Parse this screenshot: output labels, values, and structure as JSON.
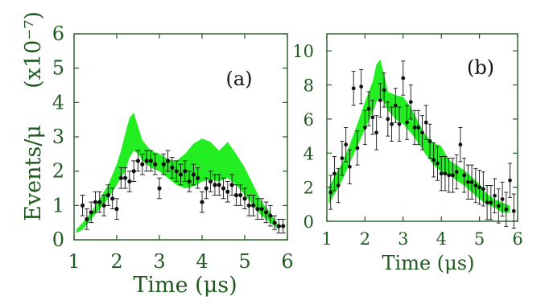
{
  "colors": {
    "axis": "#1f5a1f",
    "band": "#22ee22",
    "points": "#111111"
  },
  "chart_data": [
    {
      "type": "scatter",
      "panel_label": "(a)",
      "xlabel": "Time (μs)",
      "ylabel": "Events/μ",
      "yscale_label": "(x10⁻⁷)",
      "xlim": [
        1,
        6
      ],
      "ylim": [
        0,
        6
      ],
      "xticks": [
        "1",
        "2",
        "3",
        "4",
        "5",
        "6"
      ],
      "yticks": [
        "0",
        "1",
        "2",
        "3",
        "4",
        "5",
        "6"
      ],
      "band": {
        "x": [
          1.05,
          1.2,
          1.4,
          1.6,
          1.8,
          2.0,
          2.1,
          2.2,
          2.3,
          2.4,
          2.5,
          2.6,
          2.8,
          3.0,
          3.2,
          3.4,
          3.6,
          3.8,
          4.0,
          4.2,
          4.4,
          4.6,
          4.8,
          5.0,
          5.2,
          5.4,
          5.6,
          5.8
        ],
        "lower": [
          0.2,
          0.3,
          0.6,
          0.9,
          1.2,
          1.6,
          1.8,
          2.0,
          2.4,
          2.6,
          2.5,
          2.3,
          2.1,
          2.0,
          1.8,
          1.6,
          1.5,
          1.55,
          1.7,
          1.75,
          1.7,
          1.8,
          1.6,
          1.3,
          1.0,
          0.7,
          0.5,
          0.3
        ],
        "upper": [
          0.3,
          0.5,
          0.8,
          1.2,
          1.6,
          2.2,
          2.6,
          3.1,
          3.55,
          3.7,
          3.3,
          2.9,
          2.6,
          2.5,
          2.35,
          2.3,
          2.5,
          2.8,
          2.95,
          2.85,
          2.6,
          2.85,
          2.5,
          2.1,
          1.6,
          1.1,
          0.8,
          0.4
        ]
      },
      "points": [
        {
          "x": 1.2,
          "y": 1.0,
          "err": 0.3
        },
        {
          "x": 1.3,
          "y": 0.6,
          "err": 0.3
        },
        {
          "x": 1.4,
          "y": 0.8,
          "err": 0.3
        },
        {
          "x": 1.5,
          "y": 1.1,
          "err": 0.3
        },
        {
          "x": 1.6,
          "y": 1.1,
          "err": 0.3
        },
        {
          "x": 1.7,
          "y": 1.0,
          "err": 0.3
        },
        {
          "x": 1.8,
          "y": 1.3,
          "err": 0.3
        },
        {
          "x": 1.9,
          "y": 1.2,
          "err": 0.3
        },
        {
          "x": 2.0,
          "y": 0.9,
          "err": 0.3
        },
        {
          "x": 2.1,
          "y": 1.8,
          "err": 0.3
        },
        {
          "x": 2.2,
          "y": 1.8,
          "err": 0.3
        },
        {
          "x": 2.3,
          "y": 1.7,
          "err": 0.3
        },
        {
          "x": 2.4,
          "y": 2.0,
          "err": 0.3
        },
        {
          "x": 2.5,
          "y": 2.3,
          "err": 0.3
        },
        {
          "x": 2.6,
          "y": 2.2,
          "err": 0.3
        },
        {
          "x": 2.7,
          "y": 2.3,
          "err": 0.3
        },
        {
          "x": 2.8,
          "y": 2.3,
          "err": 0.3
        },
        {
          "x": 2.9,
          "y": 2.2,
          "err": 0.3
        },
        {
          "x": 3.0,
          "y": 1.5,
          "err": 0.3
        },
        {
          "x": 3.1,
          "y": 2.2,
          "err": 0.3
        },
        {
          "x": 3.2,
          "y": 2.3,
          "err": 0.3
        },
        {
          "x": 3.3,
          "y": 2.1,
          "err": 0.3
        },
        {
          "x": 3.4,
          "y": 2.0,
          "err": 0.3
        },
        {
          "x": 3.5,
          "y": 1.9,
          "err": 0.3
        },
        {
          "x": 3.6,
          "y": 2.0,
          "err": 0.3
        },
        {
          "x": 3.7,
          "y": 1.7,
          "err": 0.3
        },
        {
          "x": 3.8,
          "y": 1.9,
          "err": 0.3
        },
        {
          "x": 3.9,
          "y": 1.8,
          "err": 0.3
        },
        {
          "x": 4.0,
          "y": 1.1,
          "err": 0.3
        },
        {
          "x": 4.1,
          "y": 1.5,
          "err": 0.3
        },
        {
          "x": 4.2,
          "y": 1.7,
          "err": 0.3
        },
        {
          "x": 4.3,
          "y": 1.6,
          "err": 0.3
        },
        {
          "x": 4.4,
          "y": 1.6,
          "err": 0.3
        },
        {
          "x": 4.5,
          "y": 1.5,
          "err": 0.3
        },
        {
          "x": 4.6,
          "y": 1.4,
          "err": 0.3
        },
        {
          "x": 4.7,
          "y": 1.6,
          "err": 0.3
        },
        {
          "x": 4.8,
          "y": 1.3,
          "err": 0.3
        },
        {
          "x": 4.9,
          "y": 1.3,
          "err": 0.3
        },
        {
          "x": 5.0,
          "y": 1.2,
          "err": 0.3
        },
        {
          "x": 5.1,
          "y": 1.0,
          "err": 0.3
        },
        {
          "x": 5.2,
          "y": 1.0,
          "err": 0.3
        },
        {
          "x": 5.3,
          "y": 0.9,
          "err": 0.3
        },
        {
          "x": 5.4,
          "y": 0.9,
          "err": 0.3
        },
        {
          "x": 5.5,
          "y": 0.8,
          "err": 0.3
        },
        {
          "x": 5.6,
          "y": 0.7,
          "err": 0.3
        },
        {
          "x": 5.7,
          "y": 0.5,
          "err": 0.2
        },
        {
          "x": 5.8,
          "y": 0.4,
          "err": 0.2
        },
        {
          "x": 5.9,
          "y": 0.4,
          "err": 0.2
        }
      ]
    },
    {
      "type": "scatter",
      "panel_label": "(b)",
      "xlabel": "Time (μs)",
      "xlim": [
        1,
        6
      ],
      "ylim": [
        0,
        11
      ],
      "xticks": [
        "1",
        "2",
        "3",
        "4",
        "5",
        "6"
      ],
      "yticks": [
        "0",
        "2",
        "4",
        "6",
        "8",
        "10"
      ],
      "band": {
        "x": [
          1.05,
          1.2,
          1.4,
          1.6,
          1.8,
          2.0,
          2.2,
          2.3,
          2.4,
          2.5,
          2.6,
          2.8,
          3.0,
          3.2,
          3.4,
          3.6,
          3.8,
          4.0,
          4.2,
          4.4,
          4.6,
          4.8,
          5.0,
          5.2,
          5.4,
          5.6,
          5.8
        ],
        "lower": [
          1.0,
          1.6,
          2.4,
          3.4,
          4.4,
          5.4,
          6.4,
          7.0,
          7.3,
          7.0,
          6.5,
          6.0,
          5.7,
          5.2,
          4.6,
          3.9,
          3.3,
          2.9,
          2.7,
          2.4,
          2.1,
          1.7,
          1.3,
          1.0,
          0.8,
          0.5,
          0.5
        ],
        "upper": [
          2.0,
          2.6,
          3.4,
          4.5,
          5.7,
          7.0,
          8.2,
          9.2,
          9.5,
          8.6,
          7.6,
          7.4,
          7.3,
          6.7,
          5.8,
          5.0,
          4.6,
          4.4,
          3.6,
          3.3,
          3.0,
          2.6,
          2.2,
          1.6,
          1.3,
          1.1,
          0.9
        ]
      },
      "points": [
        {
          "x": 1.1,
          "y": 1.7,
          "err": 1.0
        },
        {
          "x": 1.2,
          "y": 2.8,
          "err": 1.0
        },
        {
          "x": 1.3,
          "y": 2.1,
          "err": 1.0
        },
        {
          "x": 1.4,
          "y": 3.7,
          "err": 1.0
        },
        {
          "x": 1.5,
          "y": 4.5,
          "err": 1.0
        },
        {
          "x": 1.6,
          "y": 3.2,
          "err": 1.0
        },
        {
          "x": 1.7,
          "y": 7.8,
          "err": 1.0
        },
        {
          "x": 1.8,
          "y": 4.3,
          "err": 1.0
        },
        {
          "x": 1.9,
          "y": 7.9,
          "err": 1.0
        },
        {
          "x": 2.0,
          "y": 5.5,
          "err": 1.0
        },
        {
          "x": 2.1,
          "y": 6.6,
          "err": 1.0
        },
        {
          "x": 2.2,
          "y": 6.1,
          "err": 1.0
        },
        {
          "x": 2.3,
          "y": 5.2,
          "err": 1.0
        },
        {
          "x": 2.4,
          "y": 7.1,
          "err": 1.0
        },
        {
          "x": 2.5,
          "y": 7.7,
          "err": 1.0
        },
        {
          "x": 2.6,
          "y": 6.0,
          "err": 1.0
        },
        {
          "x": 2.7,
          "y": 5.7,
          "err": 1.0
        },
        {
          "x": 2.8,
          "y": 6.8,
          "err": 1.0
        },
        {
          "x": 2.9,
          "y": 5.7,
          "err": 1.0
        },
        {
          "x": 3.0,
          "y": 8.4,
          "err": 1.0
        },
        {
          "x": 3.1,
          "y": 5.8,
          "err": 1.0
        },
        {
          "x": 3.2,
          "y": 7.0,
          "err": 1.0
        },
        {
          "x": 3.3,
          "y": 5.5,
          "err": 1.0
        },
        {
          "x": 3.4,
          "y": 5.5,
          "err": 1.0
        },
        {
          "x": 3.5,
          "y": 5.2,
          "err": 1.0
        },
        {
          "x": 3.6,
          "y": 5.8,
          "err": 1.0
        },
        {
          "x": 3.7,
          "y": 4.7,
          "err": 1.0
        },
        {
          "x": 3.8,
          "y": 3.6,
          "err": 1.0
        },
        {
          "x": 3.9,
          "y": 3.4,
          "err": 1.0
        },
        {
          "x": 4.0,
          "y": 2.8,
          "err": 1.0
        },
        {
          "x": 4.1,
          "y": 2.8,
          "err": 1.0
        },
        {
          "x": 4.2,
          "y": 2.7,
          "err": 1.0
        },
        {
          "x": 4.3,
          "y": 2.7,
          "err": 1.0
        },
        {
          "x": 4.4,
          "y": 2.9,
          "err": 1.0
        },
        {
          "x": 4.5,
          "y": 4.5,
          "err": 1.0
        },
        {
          "x": 4.6,
          "y": 2.7,
          "err": 1.0
        },
        {
          "x": 4.7,
          "y": 2.3,
          "err": 1.0
        },
        {
          "x": 4.8,
          "y": 2.3,
          "err": 1.0
        },
        {
          "x": 4.9,
          "y": 2.1,
          "err": 1.0
        },
        {
          "x": 5.0,
          "y": 2.0,
          "err": 1.0
        },
        {
          "x": 5.1,
          "y": 1.9,
          "err": 1.0
        },
        {
          "x": 5.2,
          "y": 1.1,
          "err": 1.0
        },
        {
          "x": 5.3,
          "y": 1.1,
          "err": 1.0
        },
        {
          "x": 5.4,
          "y": 1.5,
          "err": 1.0
        },
        {
          "x": 5.5,
          "y": 0.9,
          "err": 1.0
        },
        {
          "x": 5.6,
          "y": 1.3,
          "err": 1.0
        },
        {
          "x": 5.7,
          "y": 0.7,
          "err": 1.0
        },
        {
          "x": 5.8,
          "y": 2.4,
          "err": 1.0
        },
        {
          "x": 5.9,
          "y": 0.6,
          "err": 1.0
        }
      ]
    }
  ]
}
